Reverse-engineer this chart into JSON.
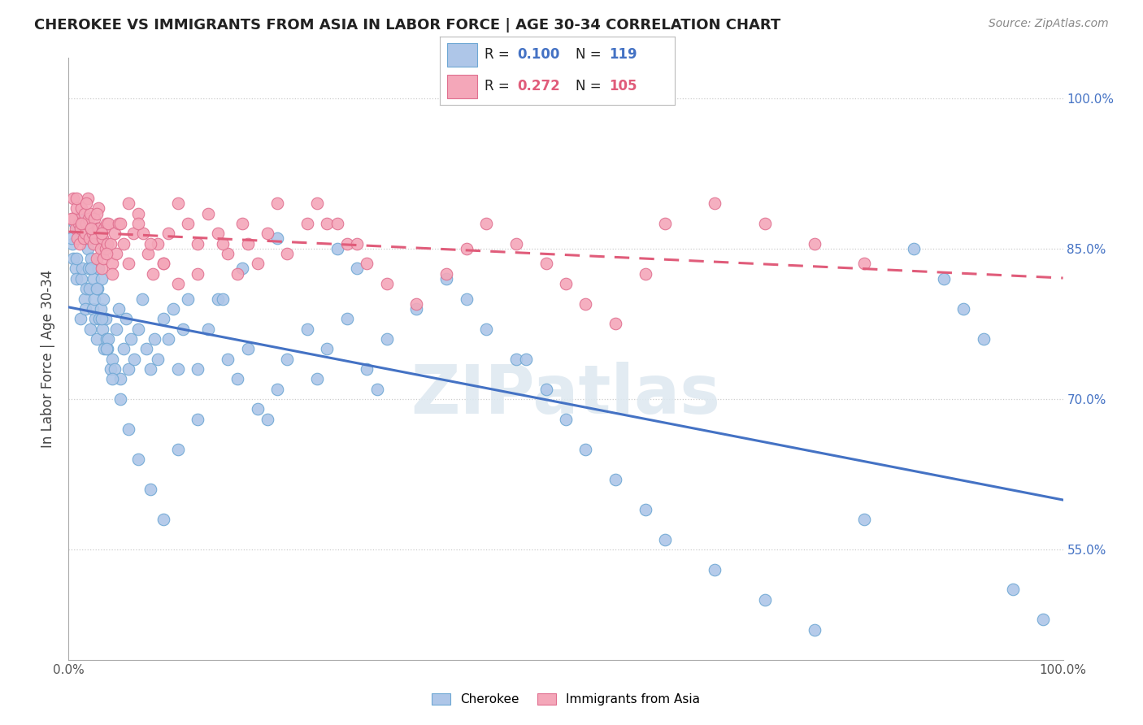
{
  "title": "CHEROKEE VS IMMIGRANTS FROM ASIA IN LABOR FORCE | AGE 30-34 CORRELATION CHART",
  "source": "Source: ZipAtlas.com",
  "ylabel": "In Labor Force | Age 30-34",
  "r_cherokee": 0.1,
  "n_cherokee": 119,
  "r_asia": 0.272,
  "n_asia": 105,
  "cherokee_color": "#aec6e8",
  "cherokee_edge": "#6fa8d4",
  "asia_color": "#f4a7b9",
  "asia_edge": "#e07090",
  "cherokee_line_color": "#4472c4",
  "asia_line_color": "#e05c7a",
  "watermark_color": "#d8e8f0",
  "watermark": "ZIPatlas",
  "background_color": "#ffffff",
  "xlim": [
    0.0,
    1.0
  ],
  "ylim": [
    0.44,
    1.04
  ],
  "yticks": [
    0.55,
    0.7,
    0.85,
    1.0
  ],
  "ytick_labels": [
    "55.0%",
    "70.0%",
    "85.0%",
    "100.0%"
  ],
  "cherokee_x": [
    0.004,
    0.005,
    0.006,
    0.007,
    0.008,
    0.009,
    0.01,
    0.011,
    0.012,
    0.013,
    0.014,
    0.015,
    0.016,
    0.017,
    0.018,
    0.019,
    0.02,
    0.021,
    0.022,
    0.023,
    0.024,
    0.025,
    0.026,
    0.027,
    0.028,
    0.029,
    0.03,
    0.031,
    0.032,
    0.033,
    0.034,
    0.035,
    0.036,
    0.037,
    0.038,
    0.039,
    0.04,
    0.042,
    0.044,
    0.046,
    0.048,
    0.05,
    0.052,
    0.055,
    0.058,
    0.06,
    0.063,
    0.066,
    0.07,
    0.074,
    0.078,
    0.082,
    0.086,
    0.09,
    0.095,
    0.1,
    0.105,
    0.11,
    0.115,
    0.12,
    0.13,
    0.14,
    0.15,
    0.16,
    0.17,
    0.18,
    0.19,
    0.2,
    0.21,
    0.22,
    0.24,
    0.25,
    0.26,
    0.28,
    0.3,
    0.32,
    0.35,
    0.38,
    0.4,
    0.42,
    0.45,
    0.48,
    0.5,
    0.52,
    0.55,
    0.58,
    0.6,
    0.65,
    0.7,
    0.75,
    0.8,
    0.85,
    0.88,
    0.9,
    0.92,
    0.003,
    0.008,
    0.013,
    0.018,
    0.023,
    0.028,
    0.033,
    0.038,
    0.044,
    0.052,
    0.06,
    0.07,
    0.082,
    0.095,
    0.11,
    0.13,
    0.155,
    0.175,
    0.21,
    0.95,
    0.98,
    0.27,
    0.29,
    0.31,
    0.46
  ],
  "cherokee_y": [
    0.855,
    0.84,
    0.875,
    0.83,
    0.82,
    0.87,
    0.88,
    0.86,
    0.78,
    0.82,
    0.83,
    0.86,
    0.8,
    0.79,
    0.81,
    0.85,
    0.83,
    0.81,
    0.77,
    0.84,
    0.79,
    0.82,
    0.8,
    0.78,
    0.76,
    0.81,
    0.83,
    0.78,
    0.79,
    0.82,
    0.77,
    0.8,
    0.75,
    0.78,
    0.76,
    0.75,
    0.76,
    0.73,
    0.74,
    0.73,
    0.77,
    0.79,
    0.72,
    0.75,
    0.78,
    0.73,
    0.76,
    0.74,
    0.77,
    0.8,
    0.75,
    0.73,
    0.76,
    0.74,
    0.78,
    0.76,
    0.79,
    0.73,
    0.77,
    0.8,
    0.73,
    0.77,
    0.8,
    0.74,
    0.72,
    0.75,
    0.69,
    0.68,
    0.71,
    0.74,
    0.77,
    0.72,
    0.75,
    0.78,
    0.73,
    0.76,
    0.79,
    0.82,
    0.8,
    0.77,
    0.74,
    0.71,
    0.68,
    0.65,
    0.62,
    0.59,
    0.56,
    0.53,
    0.5,
    0.47,
    0.58,
    0.85,
    0.82,
    0.79,
    0.76,
    0.86,
    0.84,
    0.87,
    0.86,
    0.83,
    0.81,
    0.78,
    0.75,
    0.72,
    0.7,
    0.67,
    0.64,
    0.61,
    0.58,
    0.65,
    0.68,
    0.8,
    0.83,
    0.86,
    0.51,
    0.48,
    0.85,
    0.83,
    0.71,
    0.74
  ],
  "asia_x": [
    0.004,
    0.005,
    0.006,
    0.007,
    0.008,
    0.009,
    0.01,
    0.011,
    0.012,
    0.013,
    0.014,
    0.015,
    0.016,
    0.017,
    0.018,
    0.019,
    0.02,
    0.021,
    0.022,
    0.023,
    0.024,
    0.025,
    0.026,
    0.027,
    0.028,
    0.029,
    0.03,
    0.031,
    0.032,
    0.033,
    0.034,
    0.035,
    0.036,
    0.037,
    0.038,
    0.039,
    0.04,
    0.042,
    0.044,
    0.046,
    0.048,
    0.05,
    0.055,
    0.06,
    0.065,
    0.07,
    0.075,
    0.08,
    0.085,
    0.09,
    0.095,
    0.1,
    0.11,
    0.12,
    0.13,
    0.14,
    0.15,
    0.16,
    0.17,
    0.18,
    0.19,
    0.2,
    0.22,
    0.24,
    0.25,
    0.26,
    0.28,
    0.3,
    0.32,
    0.35,
    0.38,
    0.4,
    0.42,
    0.45,
    0.48,
    0.5,
    0.52,
    0.55,
    0.58,
    0.6,
    0.65,
    0.7,
    0.75,
    0.8,
    0.003,
    0.008,
    0.013,
    0.018,
    0.023,
    0.028,
    0.033,
    0.038,
    0.044,
    0.052,
    0.06,
    0.07,
    0.082,
    0.095,
    0.11,
    0.13,
    0.155,
    0.175,
    0.21,
    0.27,
    0.29
  ],
  "asia_y": [
    0.88,
    0.9,
    0.88,
    0.87,
    0.89,
    0.86,
    0.875,
    0.855,
    0.87,
    0.89,
    0.875,
    0.86,
    0.885,
    0.865,
    0.875,
    0.9,
    0.88,
    0.86,
    0.885,
    0.87,
    0.865,
    0.855,
    0.88,
    0.86,
    0.84,
    0.87,
    0.89,
    0.87,
    0.85,
    0.83,
    0.86,
    0.84,
    0.87,
    0.85,
    0.875,
    0.855,
    0.875,
    0.855,
    0.835,
    0.865,
    0.845,
    0.875,
    0.855,
    0.835,
    0.865,
    0.885,
    0.865,
    0.845,
    0.825,
    0.855,
    0.835,
    0.865,
    0.895,
    0.875,
    0.855,
    0.885,
    0.865,
    0.845,
    0.825,
    0.855,
    0.835,
    0.865,
    0.845,
    0.875,
    0.895,
    0.875,
    0.855,
    0.835,
    0.815,
    0.795,
    0.825,
    0.85,
    0.875,
    0.855,
    0.835,
    0.815,
    0.795,
    0.775,
    0.825,
    0.875,
    0.895,
    0.875,
    0.855,
    0.835,
    0.88,
    0.9,
    0.875,
    0.895,
    0.87,
    0.885,
    0.865,
    0.845,
    0.825,
    0.875,
    0.895,
    0.875,
    0.855,
    0.835,
    0.815,
    0.825,
    0.855,
    0.875,
    0.895,
    0.875,
    0.855
  ]
}
